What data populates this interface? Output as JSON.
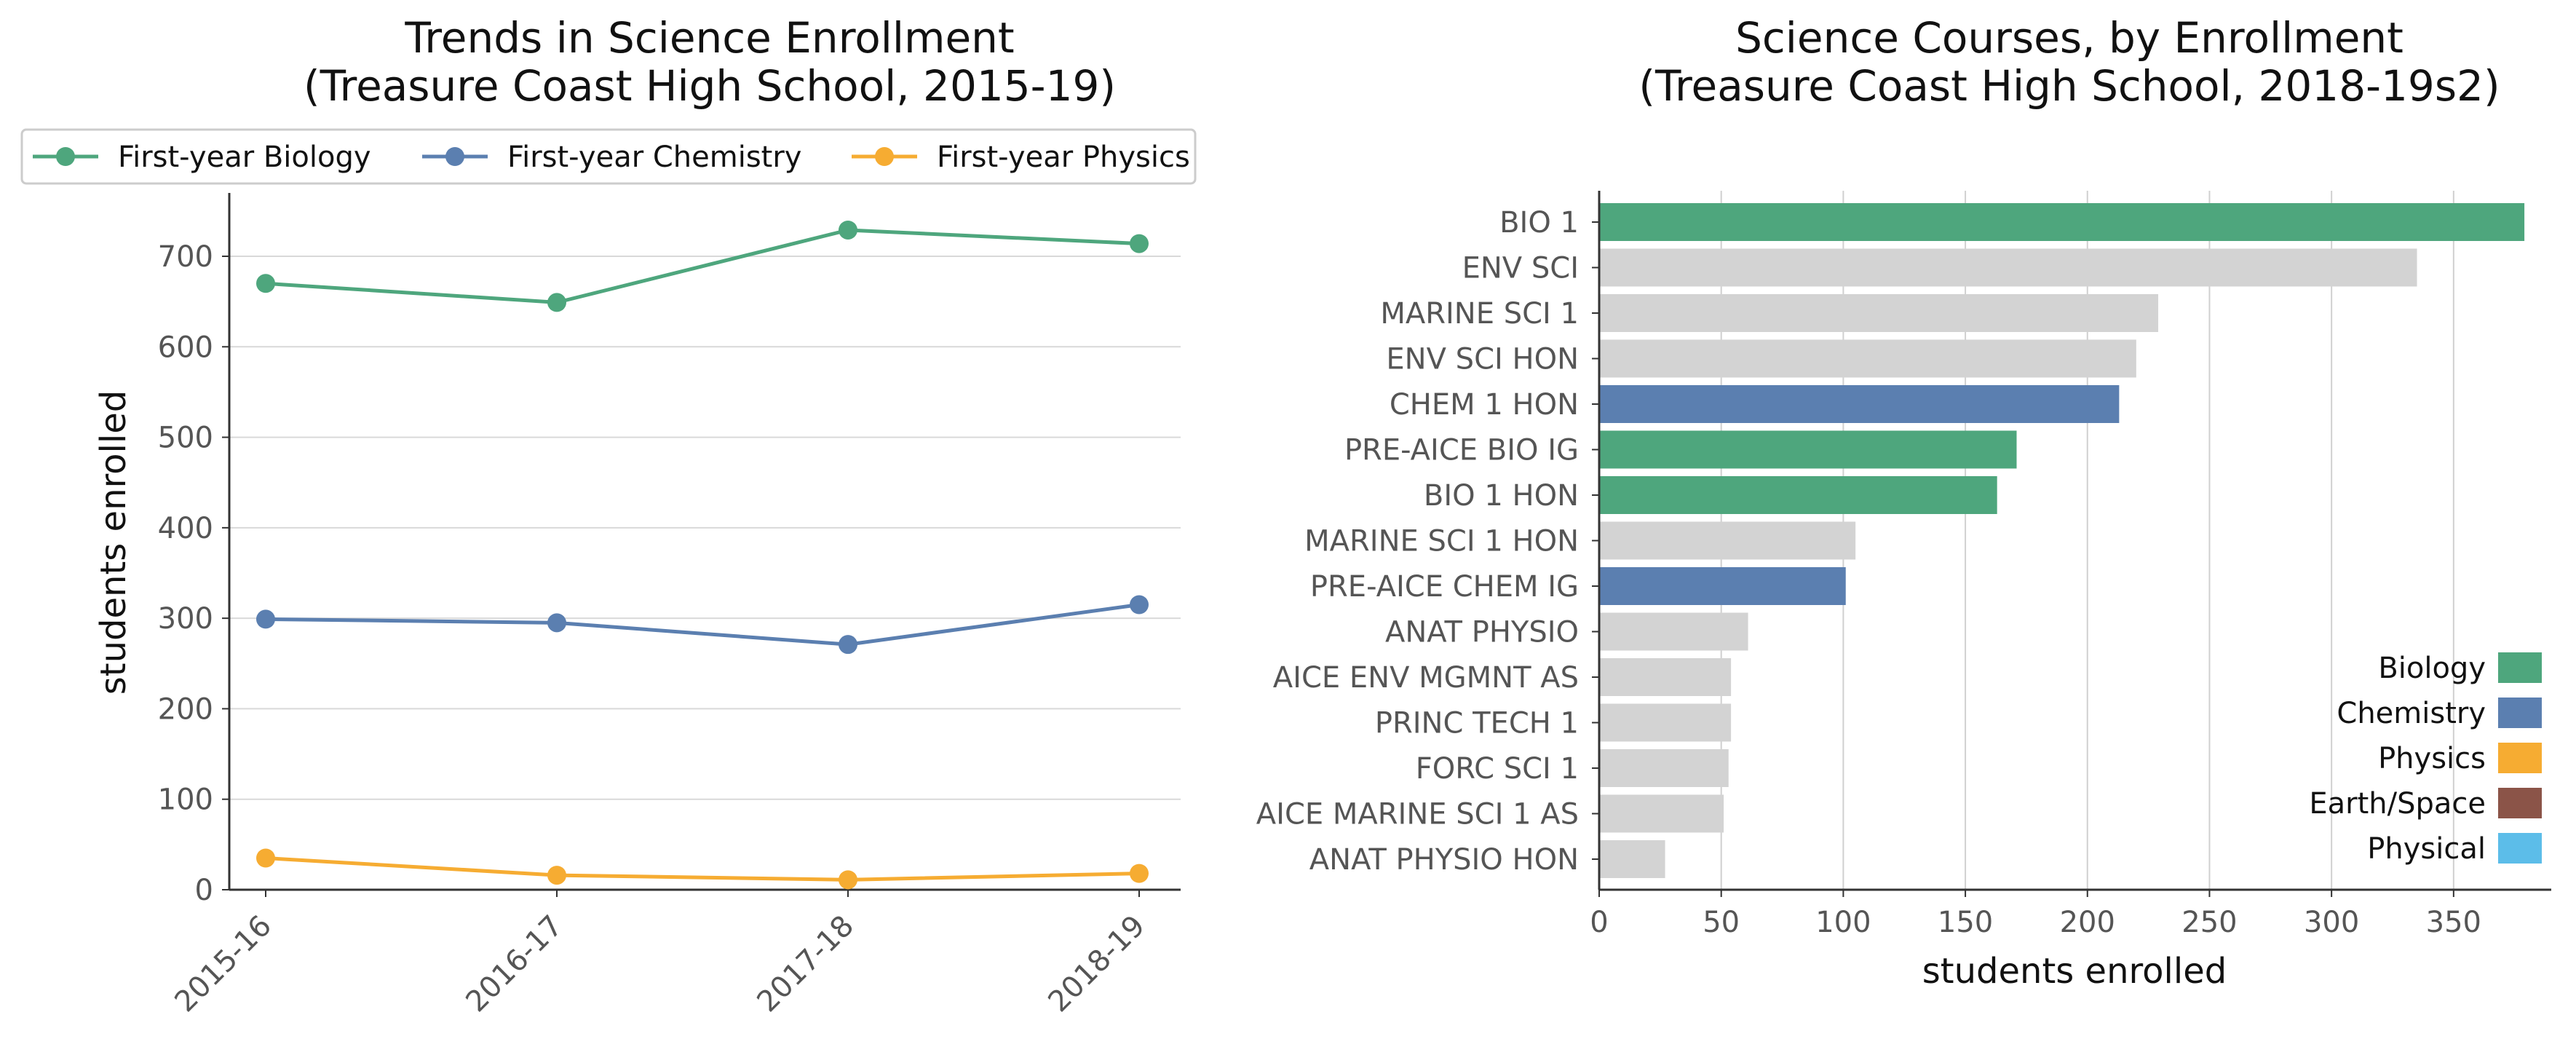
{
  "chart_data": [
    {
      "type": "line",
      "title": "Trends in Science Enrollment\n(Treasure Coast High School, 2015-19)",
      "xlabel": "",
      "ylabel": "students enrolled",
      "categories": [
        "2015-16",
        "2016-17",
        "2017-18",
        "2018-19"
      ],
      "series": [
        {
          "name": "First-year Biology",
          "color": "#4ea67d",
          "values": [
            670,
            649,
            729,
            714
          ]
        },
        {
          "name": "First-year Chemistry",
          "color": "#5b7fb0",
          "values": [
            299,
            295,
            271,
            315
          ]
        },
        {
          "name": "First-year Physics",
          "color": "#f6ac32",
          "values": [
            35,
            16,
            11,
            18
          ]
        }
      ],
      "ylim": [
        0,
        770
      ],
      "yticks": [
        0,
        100,
        200,
        300,
        400,
        500,
        600,
        700
      ],
      "grid": "horizontal",
      "legend_position": "top"
    },
    {
      "type": "bar",
      "orientation": "horizontal",
      "title": "Science Courses, by Enrollment\n(Treasure Coast High School, 2018-19s2)",
      "xlabel": "students enrolled",
      "ylabel": "",
      "categories": [
        "BIO 1",
        "ENV SCI",
        "MARINE SCI 1",
        "ENV SCI HON",
        "CHEM 1 HON",
        "PRE-AICE BIO IG",
        "BIO 1 HON",
        "MARINE SCI 1 HON",
        "PRE-AICE CHEM IG",
        "ANAT PHYSIO",
        "AICE ENV MGMNT AS",
        "PRINC TECH 1",
        "FORC SCI 1",
        "AICE MARINE SCI 1 AS",
        "ANAT PHYSIO HON"
      ],
      "values": [
        379,
        335,
        229,
        220,
        213,
        171,
        163,
        105,
        101,
        61,
        54,
        54,
        53,
        51,
        27
      ],
      "bar_groups": [
        "Biology",
        "Other",
        "Other",
        "Other",
        "Chemistry",
        "Biology",
        "Biology",
        "Other",
        "Chemistry",
        "Other",
        "Other",
        "Other",
        "Other",
        "Other",
        "Other"
      ],
      "group_colors": {
        "Biology": "#4ea67d",
        "Chemistry": "#5b7fb0",
        "Physics": "#f6ac32",
        "Earth/Space": "#8b5448",
        "Physical": "#5cbde9",
        "Other": "#d3d3d3"
      },
      "xlim": [
        0,
        390
      ],
      "xticks": [
        0,
        50,
        100,
        150,
        200,
        250,
        300,
        350
      ],
      "grid": "vertical",
      "legend": [
        "Biology",
        "Chemistry",
        "Physics",
        "Earth/Space",
        "Physical"
      ],
      "legend_position": "lower-right"
    }
  ]
}
